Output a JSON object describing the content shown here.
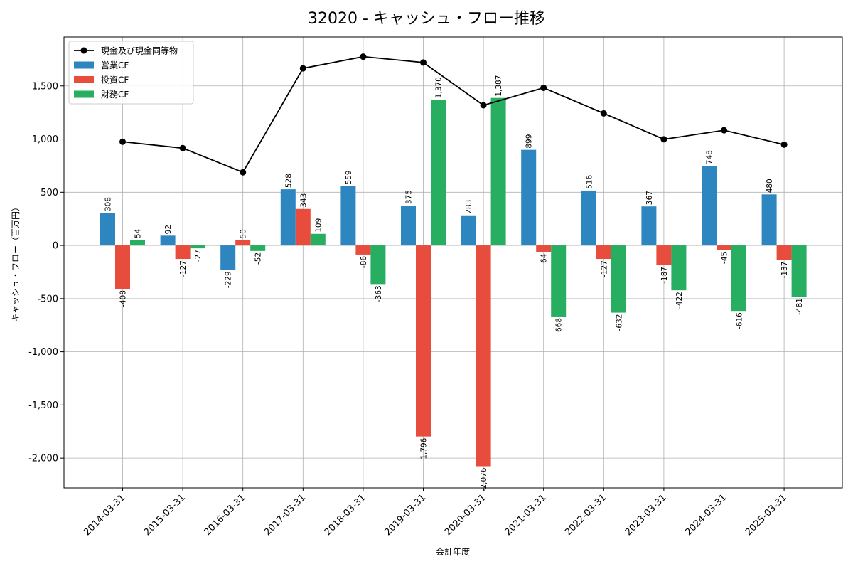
{
  "chart_data": {
    "type": "bar",
    "title": "32020 - キャッシュ・フロー推移",
    "xlabel": "会計年度",
    "ylabel": "キャッシュ・フロー（百万円）",
    "categories": [
      "2014-03-31",
      "2015-03-31",
      "2016-03-31",
      "2017-03-31",
      "2018-03-31",
      "2019-03-31",
      "2020-03-31",
      "2021-03-31",
      "2022-03-31",
      "2023-03-31",
      "2024-03-31",
      "2025-03-31"
    ],
    "series": [
      {
        "name": "営業CF",
        "color": "#2e86c1",
        "values": [
          308,
          92,
          -229,
          528,
          559,
          375,
          283,
          899,
          516,
          367,
          748,
          480
        ]
      },
      {
        "name": "投資CF",
        "color": "#e74c3c",
        "values": [
          -408,
          -127,
          50,
          343,
          -86,
          -1796,
          -2076,
          -64,
          -127,
          -187,
          -45,
          -137
        ]
      },
      {
        "name": "財務CF",
        "color": "#27ae60",
        "values": [
          54,
          -27,
          -52,
          109,
          -363,
          1370,
          1387,
          -668,
          -632,
          -422,
          -616,
          -481
        ]
      }
    ],
    "line": {
      "name": "現金及び現金同等物",
      "color": "#000000",
      "values": [
        975,
        915,
        688,
        1665,
        1775,
        1720,
        1318,
        1482,
        1242,
        998,
        1083,
        948
      ]
    },
    "ylim": [
      -2280,
      1960
    ],
    "yticks": [
      -2000,
      -1500,
      -1000,
      -500,
      0,
      500,
      1000,
      1500
    ],
    "ytick_labels": [
      "-2,000",
      "-1,500",
      "-1,000",
      "-500",
      "0",
      "500",
      "1,000",
      "1,500"
    ],
    "grid": true,
    "legend_position": "top-left"
  }
}
